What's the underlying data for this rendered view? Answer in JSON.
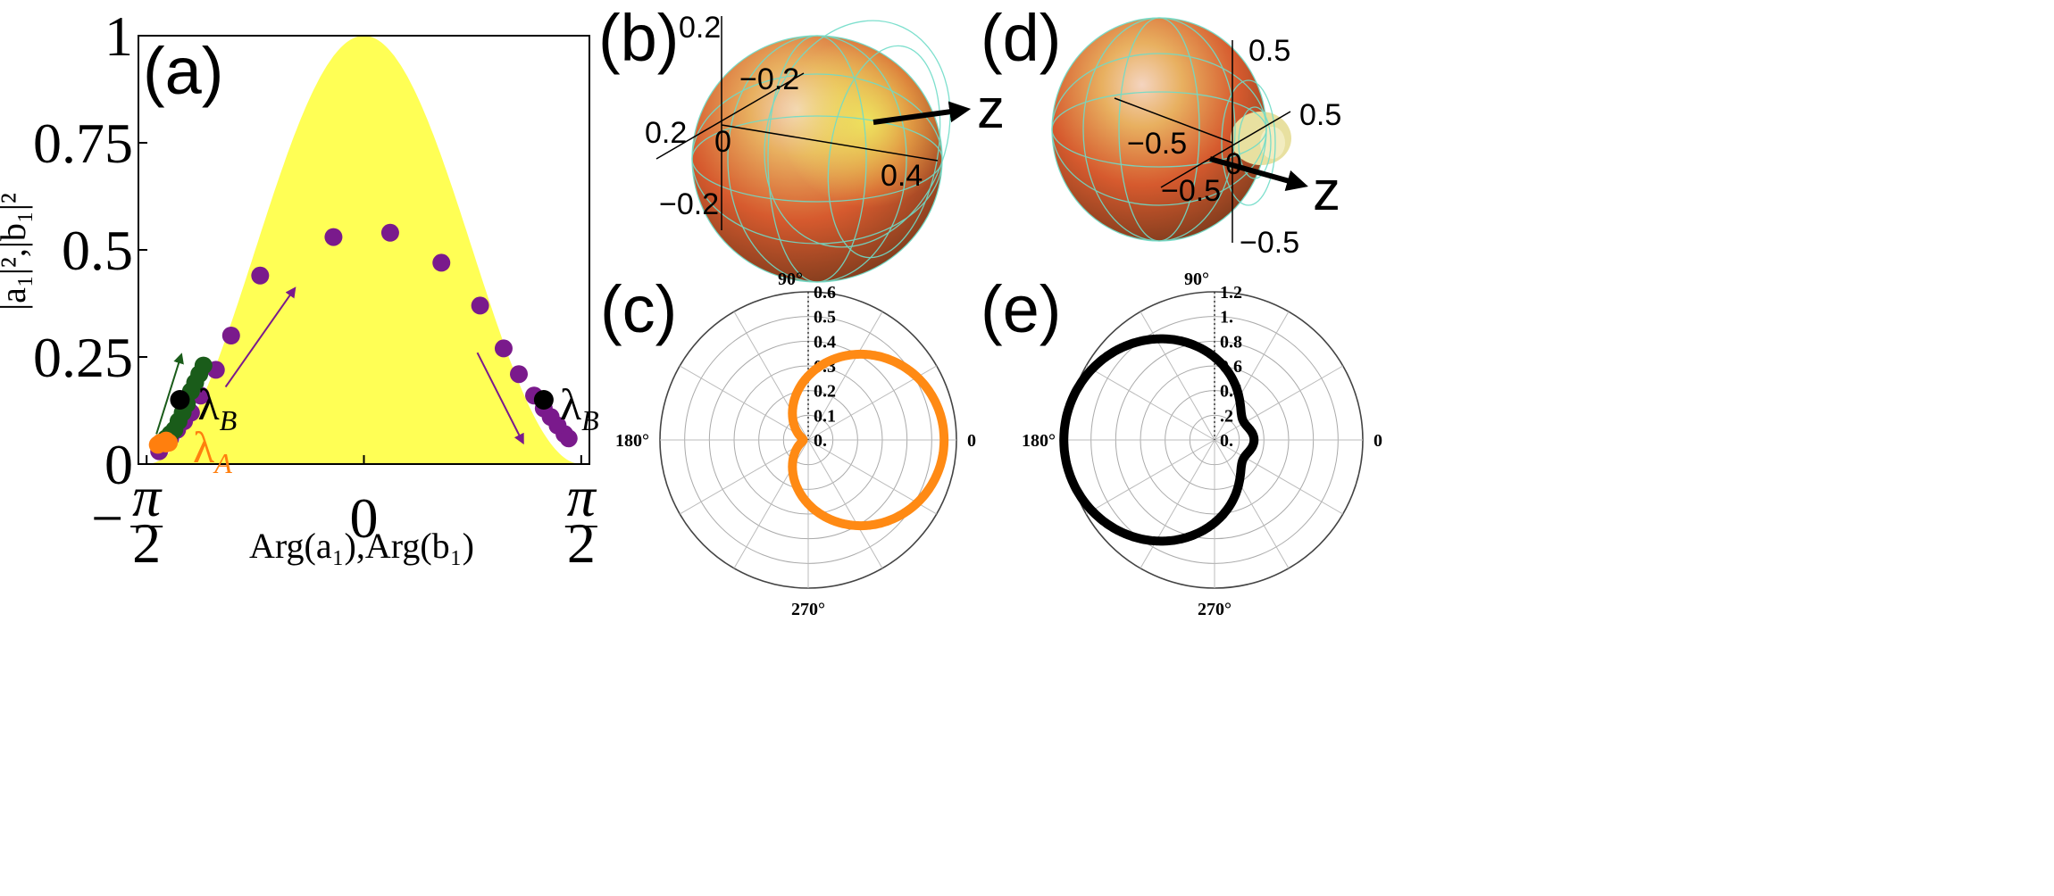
{
  "chart_data": [
    {
      "id": "a",
      "type": "scatter",
      "panel_label": "(a)",
      "xlabel": "Arg(a₁),Arg(b₁)",
      "ylabel": "|a₁|²,|b₁|²",
      "xlim": [
        -1.63,
        1.63
      ],
      "ylim": [
        0,
        1
      ],
      "x_ticks": [
        {
          "value": -1.5708,
          "label_sign": "−",
          "num": "π",
          "den": "2"
        },
        {
          "value": 0,
          "label": "0"
        },
        {
          "value": 1.5708,
          "label_sign": "",
          "num": "π",
          "den": "2"
        }
      ],
      "y_ticks": [
        {
          "value": 0,
          "label": "0"
        },
        {
          "value": 0.25,
          "label": "0.25"
        },
        {
          "value": 0.5,
          "label": "0.5"
        },
        {
          "value": 0.75,
          "label": "0.75"
        },
        {
          "value": 1,
          "label": "1"
        }
      ],
      "envelope": {
        "function": "cos^2(x)",
        "color": "#ffff55"
      },
      "series": [
        {
          "color": "#7a1a8c",
          "x": [
            -1.48,
            -1.45,
            -1.4,
            -1.35,
            -1.3,
            -1.25,
            -1.18,
            -1.07,
            -0.96,
            -0.75,
            -0.22,
            0.19,
            0.56,
            0.84,
            1.01,
            1.12,
            1.23,
            1.3,
            1.35,
            1.4,
            1.45,
            1.48
          ],
          "y": [
            0.03,
            0.05,
            0.06,
            0.08,
            0.1,
            0.12,
            0.16,
            0.22,
            0.3,
            0.44,
            0.53,
            0.54,
            0.47,
            0.37,
            0.27,
            0.21,
            0.16,
            0.13,
            0.11,
            0.09,
            0.07,
            0.06
          ]
        },
        {
          "color": "#1a5c1a",
          "x": [
            -1.46,
            -1.43,
            -1.4,
            -1.37,
            -1.34,
            -1.31,
            -1.28,
            -1.25,
            -1.22,
            -1.19,
            -1.16
          ],
          "y": [
            0.05,
            0.06,
            0.07,
            0.08,
            0.1,
            0.12,
            0.14,
            0.17,
            0.19,
            0.21,
            0.23
          ]
        },
        {
          "color": "#ff7f0e",
          "x": [
            -1.49,
            -1.47,
            -1.45,
            -1.43,
            -1.41
          ],
          "y": [
            0.045,
            0.05,
            0.05,
            0.055,
            0.05
          ]
        }
      ],
      "highlight_points": [
        {
          "x": -1.33,
          "y": 0.15,
          "color": "#000000",
          "label": "λ",
          "sub": "B",
          "label_color": "#000000"
        },
        {
          "x": 1.3,
          "y": 0.15,
          "color": "#000000",
          "label": "λ",
          "sub": "B",
          "label_color": "#000000"
        },
        {
          "x": -1.43,
          "y": 0.05,
          "color": "#ff7f0e",
          "label": "λ",
          "sub": "A",
          "label_color": "#ff7f0e"
        }
      ],
      "arrows": [
        {
          "color": "#1a5c1a",
          "from": [
            -1.5,
            0.07
          ],
          "to": [
            -1.32,
            0.255
          ]
        },
        {
          "color": "#7a1a8c",
          "from": [
            -1.0,
            0.18
          ],
          "to": [
            -0.5,
            0.41
          ]
        },
        {
          "color": "#7a1a8c",
          "from": [
            0.82,
            0.26
          ],
          "to": [
            1.15,
            0.05
          ]
        }
      ]
    },
    {
      "id": "b",
      "type": "surface3d",
      "panel_label": "(b)",
      "axis_labels": [
        "0.2",
        "−0.2",
        "0.2",
        "0",
        "0.4",
        "−0.2"
      ],
      "arrow_label": "z"
    },
    {
      "id": "c",
      "type": "polar",
      "panel_label": "(c)",
      "rmax": 0.6,
      "radial_ticks": [
        "0.",
        "0.1",
        "0.2",
        "0.3",
        "0.4",
        "0.5",
        "0.6"
      ],
      "angle_labels": {
        "top": "90°",
        "left": "180°",
        "right": "0",
        "bottom": "270°"
      },
      "curve": {
        "color": "#ff8a14",
        "shape": "forward-lobe",
        "forward_r": 0.55,
        "backward_r": 0.02
      }
    },
    {
      "id": "d",
      "type": "surface3d",
      "panel_label": "(d)",
      "axis_labels": [
        "0.5",
        "0.5",
        "−0.5",
        "0",
        "−0.5",
        "−0.5"
      ],
      "arrow_label": "z"
    },
    {
      "id": "e",
      "type": "polar",
      "panel_label": "(e)",
      "rmax": 1.2,
      "radial_ticks": [
        "0.",
        ".2",
        "0.4",
        "0.6",
        "0.8",
        "1.",
        "1.2"
      ],
      "angle_labels": {
        "top": "90°",
        "left": "180°",
        "right": "0",
        "bottom": "270°"
      },
      "curve": {
        "color": "#000000",
        "shape": "backward-lobe",
        "backward_r": 1.1,
        "forward_r": 0.2
      }
    }
  ]
}
